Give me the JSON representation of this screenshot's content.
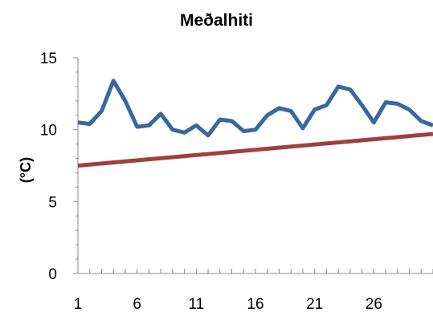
{
  "chart_data": {
    "type": "line",
    "title": "Meðalhiti",
    "xlabel": "",
    "ylabel": "(°C)",
    "xlim": [
      1,
      31
    ],
    "ylim": [
      0,
      15
    ],
    "x_ticks": [
      1,
      6,
      11,
      16,
      21,
      26
    ],
    "y_ticks": [
      0,
      5,
      10,
      15
    ],
    "grid": false,
    "legend": "none",
    "series": [
      {
        "color": "#3a679e",
        "x": [
          1,
          2,
          3,
          4,
          5,
          6,
          7,
          8,
          9,
          10,
          11,
          12,
          13,
          14,
          15,
          16,
          17,
          18,
          19,
          20,
          21,
          22,
          23,
          24,
          25,
          26,
          27,
          28,
          29,
          30,
          31
        ],
        "values": [
          10.5,
          10.4,
          11.3,
          13.4,
          12.0,
          10.2,
          10.3,
          11.1,
          10.0,
          9.8,
          10.3,
          9.6,
          10.7,
          10.6,
          9.9,
          10.0,
          11.0,
          11.5,
          11.3,
          10.1,
          11.4,
          11.7,
          13.0,
          12.8,
          11.7,
          10.5,
          11.9,
          11.8,
          11.4,
          10.6,
          10.3
        ]
      },
      {
        "color": "#a0403c",
        "x": [
          1,
          31
        ],
        "values": [
          7.5,
          9.7
        ]
      }
    ]
  }
}
